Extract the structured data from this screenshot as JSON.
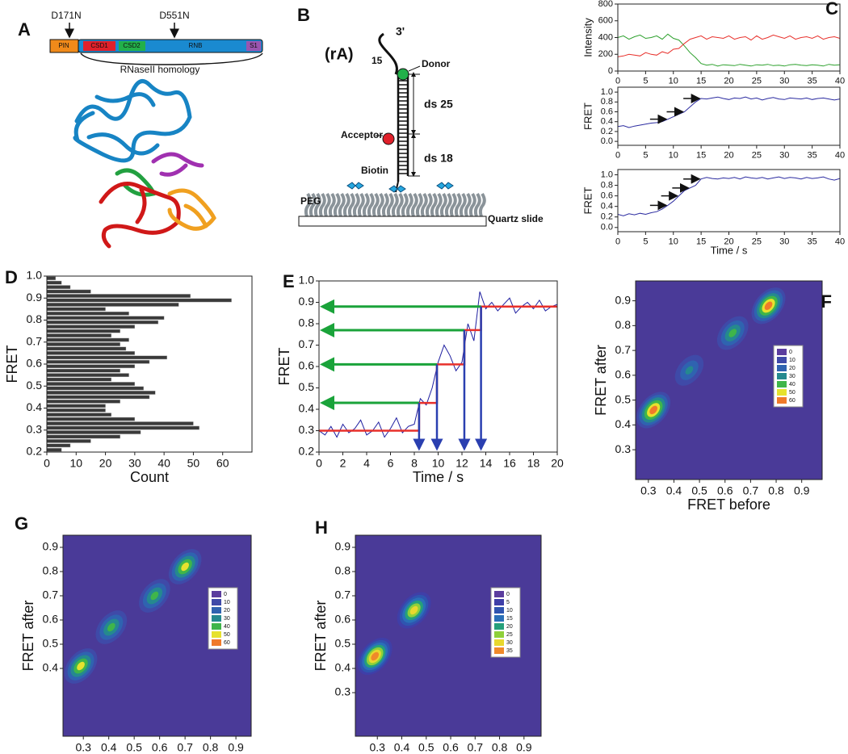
{
  "diagrams": {
    "A": {
      "panel": "A",
      "mutations": [
        "D171N",
        "D551N"
      ],
      "domains": [
        "PIN",
        "CSD1",
        "CSD2",
        "RNB",
        "S1"
      ],
      "homology": "RNaseII homology"
    },
    "B": {
      "panel": "B",
      "strand": "(rA)",
      "subscript": "15",
      "end": "3'",
      "donor": "Donor",
      "acceptor": "Acceptor",
      "ds_top": "ds 25",
      "ds_bottom": "ds 18",
      "biotin": "Biotin",
      "peg": "PEG",
      "slide": "Quartz slide"
    }
  },
  "chart_data": [
    {
      "type": "line",
      "panel": "C",
      "ylabel": "Intensity",
      "x": [
        0,
        1,
        2,
        3,
        4,
        5,
        6,
        7,
        8,
        9,
        10,
        11,
        12,
        13,
        14,
        15,
        16,
        17,
        18,
        19,
        20,
        21,
        22,
        23,
        24,
        25,
        26,
        27,
        28,
        29,
        30,
        31,
        32,
        33,
        34,
        35,
        36,
        37,
        38,
        39,
        40
      ],
      "series": [
        {
          "color": "#2ca02c",
          "values": [
            400,
            420,
            380,
            410,
            430,
            390,
            400,
            420,
            380,
            440,
            390,
            370,
            300,
            220,
            160,
            90,
            70,
            80,
            60,
            75,
            70,
            65,
            80,
            70,
            60,
            75,
            70,
            80,
            65,
            70,
            60,
            75,
            80,
            70,
            65,
            75,
            70,
            60,
            80,
            70,
            75
          ]
        },
        {
          "color": "#e8302b",
          "values": [
            170,
            180,
            200,
            190,
            180,
            220,
            200,
            190,
            230,
            210,
            260,
            270,
            330,
            380,
            400,
            420,
            380,
            410,
            400,
            390,
            420,
            380,
            400,
            410,
            370,
            420,
            380,
            400,
            430,
            410,
            390,
            420,
            380,
            400,
            410,
            390,
            420,
            380,
            400,
            410,
            390
          ]
        }
      ],
      "xlim": [
        0,
        40
      ],
      "ylim": [
        0,
        800
      ],
      "xticks": [
        0,
        5,
        10,
        15,
        20,
        25,
        30,
        35,
        40
      ],
      "yticks": [
        0,
        200,
        400,
        600,
        800
      ]
    },
    {
      "type": "line",
      "ylabel": "FRET",
      "x": [
        0,
        1,
        2,
        3,
        4,
        5,
        6,
        7,
        8,
        9,
        10,
        11,
        12,
        13,
        14,
        15,
        16,
        17,
        18,
        19,
        20,
        21,
        22,
        23,
        24,
        25,
        26,
        27,
        28,
        29,
        30,
        31,
        32,
        33,
        34,
        35,
        36,
        37,
        38,
        39,
        40
      ],
      "series": [
        {
          "color": "#2b2ba0",
          "values": [
            0.3,
            0.32,
            0.28,
            0.31,
            0.33,
            0.35,
            0.37,
            0.38,
            0.4,
            0.45,
            0.5,
            0.55,
            0.6,
            0.7,
            0.8,
            0.87,
            0.86,
            0.88,
            0.9,
            0.87,
            0.85,
            0.88,
            0.87,
            0.9,
            0.86,
            0.88,
            0.84,
            0.87,
            0.89,
            0.86,
            0.85,
            0.88,
            0.87,
            0.86,
            0.88,
            0.85,
            0.87,
            0.88,
            0.86,
            0.84,
            0.86
          ]
        }
      ],
      "arrows": [
        {
          "x": 9,
          "y": 0.45
        },
        {
          "x": 12,
          "y": 0.6
        },
        {
          "x": 15,
          "y": 0.87
        }
      ],
      "xlim": [
        0,
        40
      ],
      "ylim": [
        -0.08,
        1.1
      ],
      "xticks": [
        0,
        5,
        10,
        15,
        20,
        25,
        30,
        35,
        40
      ],
      "yticks": [
        {
          "value": 0,
          "label": "0.0"
        },
        0.2,
        0.4,
        0.6,
        0.8,
        {
          "value": 1,
          "label": "1.0"
        }
      ]
    },
    {
      "type": "line",
      "ylabel": "FRET",
      "xlabel": "Time / s",
      "x": [
        0,
        1,
        2,
        3,
        4,
        5,
        6,
        7,
        8,
        9,
        10,
        11,
        12,
        13,
        14,
        15,
        16,
        17,
        18,
        19,
        20,
        21,
        22,
        23,
        24,
        25,
        26,
        27,
        28,
        29,
        30,
        31,
        32,
        33,
        34,
        35,
        36,
        37,
        38,
        39,
        40
      ],
      "series": [
        {
          "color": "#2b2ba0",
          "values": [
            0.25,
            0.22,
            0.26,
            0.24,
            0.27,
            0.25,
            0.28,
            0.3,
            0.35,
            0.42,
            0.5,
            0.6,
            0.7,
            0.75,
            0.8,
            0.92,
            0.95,
            0.93,
            0.92,
            0.94,
            0.93,
            0.95,
            0.92,
            0.96,
            0.94,
            0.93,
            0.95,
            0.92,
            0.94,
            0.96,
            0.93,
            0.95,
            0.94,
            0.92,
            0.95,
            0.93,
            0.94,
            0.96,
            0.92,
            0.9,
            0.93
          ]
        }
      ],
      "arrows": [
        {
          "x": 9,
          "y": 0.42
        },
        {
          "x": 11,
          "y": 0.6
        },
        {
          "x": 13,
          "y": 0.75
        },
        {
          "x": 15,
          "y": 0.92
        }
      ],
      "xlim": [
        0,
        40
      ],
      "ylim": [
        -0.08,
        1.1
      ],
      "xticks": [
        0,
        5,
        10,
        15,
        20,
        25,
        30,
        35,
        40
      ],
      "yticks": [
        {
          "value": 0,
          "label": "0.0"
        },
        0.2,
        0.4,
        0.6,
        0.8,
        {
          "value": 1,
          "label": "1.0"
        }
      ]
    },
    {
      "type": "histogram",
      "panel": "D",
      "xlabel": "Count",
      "ylabel": "FRET",
      "color": "#3a3a3a",
      "bins": [
        0.2,
        0.22,
        0.24,
        0.26,
        0.28,
        0.3,
        0.32,
        0.34,
        0.36,
        0.38,
        0.4,
        0.42,
        0.44,
        0.46,
        0.48,
        0.5,
        0.52,
        0.54,
        0.56,
        0.58,
        0.6,
        0.62,
        0.64,
        0.66,
        0.68,
        0.7,
        0.72,
        0.74,
        0.76,
        0.78,
        0.8,
        0.82,
        0.84,
        0.86,
        0.88,
        0.9,
        0.92,
        0.94,
        0.96,
        0.98,
        1.0
      ],
      "values": [
        5,
        8,
        15,
        25,
        32,
        52,
        50,
        30,
        22,
        20,
        20,
        25,
        35,
        37,
        33,
        30,
        22,
        28,
        25,
        30,
        35,
        41,
        30,
        27,
        25,
        28,
        22,
        25,
        30,
        38,
        40,
        28,
        20,
        45,
        63,
        49,
        15,
        8,
        5,
        3
      ],
      "xlim": [
        0,
        70
      ],
      "ylim": [
        0.2,
        1.0
      ],
      "xticks": [
        0,
        10,
        20,
        30,
        40,
        50,
        60
      ],
      "yticks": [
        0.2,
        0.3,
        0.4,
        0.5,
        0.6,
        0.7,
        0.8,
        0.9,
        {
          "value": 1,
          "label": "1.0"
        }
      ]
    },
    {
      "type": "line",
      "panel": "E",
      "xlabel": "Time / s",
      "ylabel": "FRET",
      "series": [
        {
          "color": "#1f1fa0",
          "x": [
            0,
            0.5,
            1,
            1.5,
            2,
            2.5,
            3,
            3.5,
            4,
            4.5,
            5,
            5.5,
            6,
            6.5,
            7,
            7.5,
            8,
            8.5,
            9,
            9.5,
            10,
            10.5,
            11,
            11.5,
            12,
            12.5,
            13,
            13.5,
            14,
            14.5,
            15,
            15.5,
            16,
            16.5,
            17,
            17.5,
            18,
            18.5,
            19,
            19.5,
            20
          ],
          "values": [
            0.3,
            0.28,
            0.32,
            0.27,
            0.33,
            0.29,
            0.31,
            0.35,
            0.28,
            0.3,
            0.34,
            0.27,
            0.31,
            0.36,
            0.29,
            0.32,
            0.33,
            0.45,
            0.42,
            0.5,
            0.62,
            0.7,
            0.65,
            0.58,
            0.62,
            0.8,
            0.72,
            0.95,
            0.87,
            0.9,
            0.86,
            0.89,
            0.92,
            0.85,
            0.88,
            0.9,
            0.87,
            0.91,
            0.86,
            0.88,
            0.89
          ]
        },
        {
          "color": "#e8302b",
          "x": [
            0,
            8.4,
            8.4,
            9.9,
            9.9,
            12.2,
            12.2,
            13.6,
            13.6,
            20
          ],
          "values": [
            0.3,
            0.3,
            0.43,
            0.43,
            0.61,
            0.61,
            0.77,
            0.77,
            0.88,
            0.88
          ]
        }
      ],
      "step_arrows": [
        {
          "x": 8.4,
          "y": 0.43
        },
        {
          "x": 9.9,
          "y": 0.61
        },
        {
          "x": 12.2,
          "y": 0.77
        },
        {
          "x": 13.6,
          "y": 0.88
        }
      ],
      "level_arrow_color": "#1aa33a",
      "time_arrow_color": "#2a3fb0",
      "xlim": [
        0,
        20
      ],
      "ylim": [
        0.2,
        1.0
      ],
      "xticks": [
        0,
        2,
        4,
        6,
        8,
        10,
        12,
        14,
        16,
        18,
        20
      ],
      "yticks": [
        0.2,
        0.3,
        0.4,
        0.5,
        0.6,
        0.7,
        0.8,
        0.9,
        {
          "value": 1,
          "label": "1.0"
        }
      ]
    },
    {
      "type": "contour",
      "panel": "F",
      "xlabel": "FRET before",
      "ylabel": "FRET after",
      "background": "#4a3a98",
      "levels": [
        0,
        10,
        20,
        30,
        40,
        50,
        60
      ],
      "level_colors": [
        "#5b3d9e",
        "#3f4aa8",
        "#2f63b0",
        "#25898f",
        "#3fb54a",
        "#e6e22e",
        "#f07a2a"
      ],
      "peaks": [
        {
          "x": 0.32,
          "y": 0.46,
          "z": 60
        },
        {
          "x": 0.46,
          "y": 0.62,
          "z": 30
        },
        {
          "x": 0.63,
          "y": 0.77,
          "z": 40
        },
        {
          "x": 0.77,
          "y": 0.88,
          "z": 60
        }
      ],
      "xlim": [
        0.25,
        0.98
      ],
      "ylim": [
        0.18,
        0.98
      ],
      "xticks": [
        0.3,
        0.4,
        0.5,
        0.6,
        0.7,
        0.8,
        0.9
      ],
      "yticks": [
        0.3,
        0.4,
        0.5,
        0.6,
        0.7,
        0.8,
        0.9
      ]
    },
    {
      "type": "contour",
      "panel": "G",
      "xlabel": "FRET before",
      "ylabel": "FRET after",
      "background": "#4a3a98",
      "levels": [
        0,
        10,
        20,
        30,
        40,
        50,
        60
      ],
      "level_colors": [
        "#5b3d9e",
        "#3f4aa8",
        "#2f63b0",
        "#25898f",
        "#3fb54a",
        "#e6e22e",
        "#f07a2a"
      ],
      "peaks": [
        {
          "x": 0.29,
          "y": 0.41,
          "z": 50
        },
        {
          "x": 0.41,
          "y": 0.57,
          "z": 40
        },
        {
          "x": 0.58,
          "y": 0.7,
          "z": 40
        },
        {
          "x": 0.7,
          "y": 0.82,
          "z": 50
        }
      ],
      "xlim": [
        0.22,
        0.96
      ],
      "ylim": [
        0.12,
        0.95
      ],
      "xticks": [
        0.3,
        0.4,
        0.5,
        0.6,
        0.7,
        0.8,
        0.9
      ],
      "yticks": [
        0.4,
        0.5,
        0.6,
        0.7,
        0.8,
        0.9
      ]
    },
    {
      "type": "contour",
      "panel": "H",
      "xlabel": "FRET before",
      "ylabel": "FRET after",
      "background": "#4a3a98",
      "levels": [
        0,
        5,
        10,
        15,
        20,
        25,
        30,
        35
      ],
      "level_colors": [
        "#5b3d9e",
        "#3f3fa8",
        "#2f55b0",
        "#2a70b8",
        "#25a07a",
        "#8fd03a",
        "#e8d82e",
        "#f08a2a"
      ],
      "peaks": [
        {
          "x": 0.29,
          "y": 0.45,
          "z": 35
        },
        {
          "x": 0.45,
          "y": 0.64,
          "z": 30
        }
      ],
      "xlim": [
        0.21,
        0.97
      ],
      "ylim": [
        0.12,
        0.95
      ],
      "xticks": [
        0.3,
        0.4,
        0.5,
        0.6,
        0.7,
        0.8,
        0.9
      ],
      "yticks": [
        0.3,
        0.4,
        0.5,
        0.6,
        0.7,
        0.8,
        0.9
      ]
    }
  ]
}
